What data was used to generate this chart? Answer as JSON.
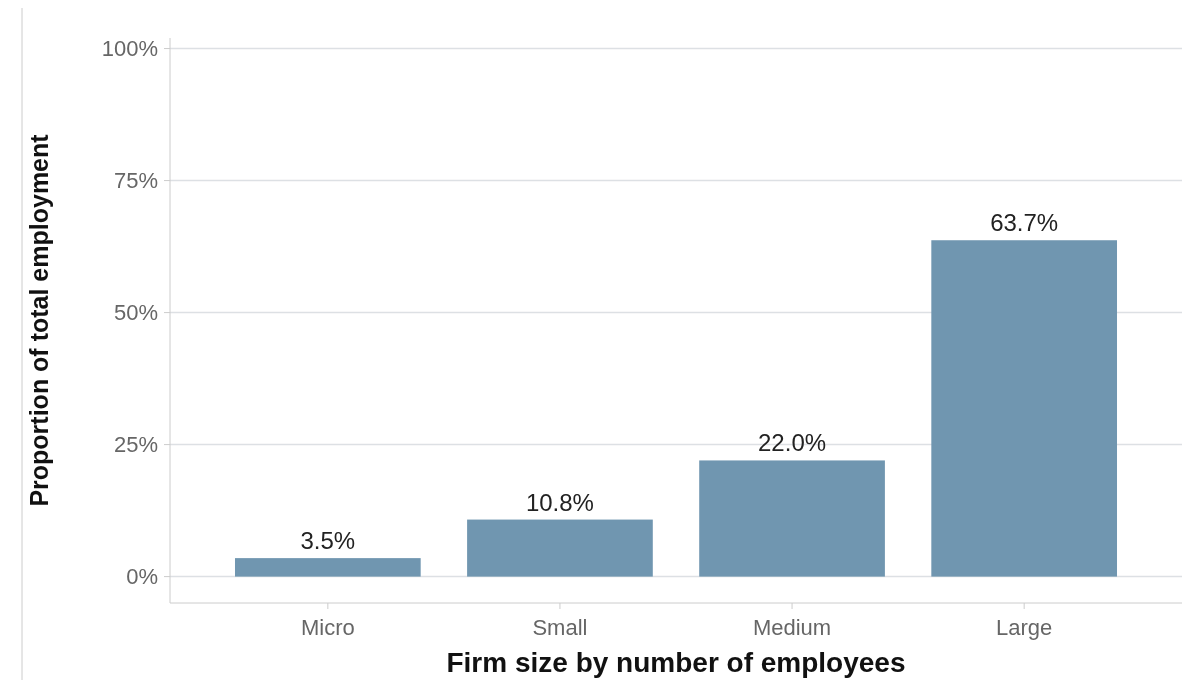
{
  "chart_data": {
    "type": "bar",
    "xlabel": "Firm size by number of employees",
    "ylabel": "Proportion of total employment",
    "categories": [
      "Micro",
      "Small",
      "Medium",
      "Large"
    ],
    "values": [
      3.5,
      10.8,
      22.0,
      63.7
    ],
    "value_labels": [
      "3.5%",
      "10.8%",
      "22.0%",
      "63.7%"
    ],
    "color": "#7096b0",
    "ylim": [
      -5,
      102
    ],
    "yticks": [
      {
        "value": 0,
        "label": "0%"
      },
      {
        "value": 25,
        "label": "25%"
      },
      {
        "value": 50,
        "label": "50%"
      },
      {
        "value": 75,
        "label": "75%"
      },
      {
        "value": 100,
        "label": "100%"
      }
    ],
    "grid": "y"
  }
}
